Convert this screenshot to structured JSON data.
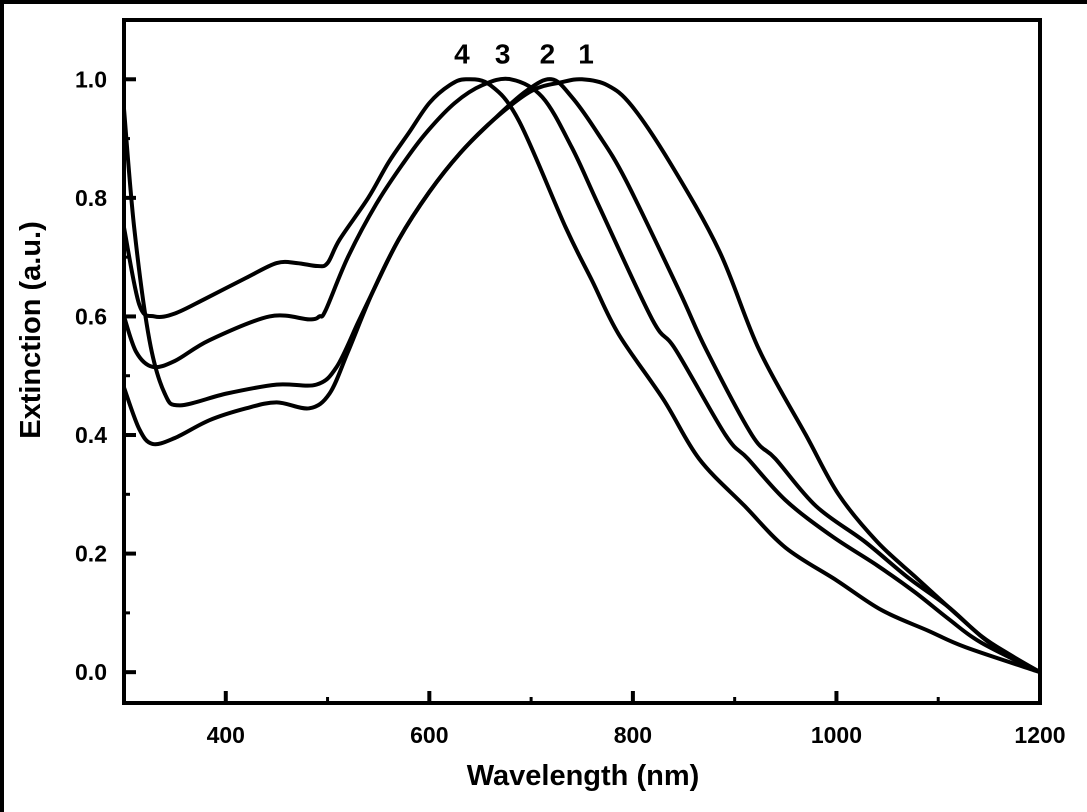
{
  "chart_data": {
    "type": "line",
    "title": "",
    "xlabel": "Wavelength (nm)",
    "ylabel": "Extinction (a.u.)",
    "xlim": [
      300,
      1200
    ],
    "ylim": [
      -0.052,
      1.1
    ],
    "xticks": [
      400,
      600,
      800,
      1000,
      1200
    ],
    "xtick_labels": [
      "400",
      "600",
      "800",
      "1000",
      "1200"
    ],
    "xminor": [
      300,
      500,
      700,
      900,
      1100
    ],
    "yticks": [
      0.0,
      0.2,
      0.4,
      0.6,
      0.8,
      1.0
    ],
    "ytick_labels": [
      "0.0",
      "0.2",
      "0.4",
      "0.6",
      "0.8",
      "1.0"
    ],
    "yminor": [
      0.1,
      0.3,
      0.5,
      0.7,
      0.9
    ],
    "grid": false,
    "line_color": "#000000",
    "series": [
      {
        "name": "1",
        "x": [
          300,
          315,
          328,
          350,
          384,
          420,
          450,
          482,
          502,
          520,
          544,
          570,
          600,
          630,
          662,
          700,
          730,
          750,
          775,
          799,
          838,
          885,
          924,
          970,
          1002,
          1040,
          1078,
          1110,
          1143,
          1170,
          1200
        ],
        "y": [
          0.48,
          0.41,
          0.385,
          0.395,
          0.425,
          0.445,
          0.455,
          0.445,
          0.47,
          0.54,
          0.64,
          0.73,
          0.81,
          0.875,
          0.93,
          0.98,
          0.995,
          1.0,
          0.99,
          0.955,
          0.855,
          0.71,
          0.544,
          0.4,
          0.3,
          0.22,
          0.16,
          0.11,
          0.06,
          0.03,
          0.0
        ]
      },
      {
        "name": "2",
        "x": [
          300,
          310,
          325,
          340,
          355,
          401,
          450,
          489,
          509,
          530,
          544,
          570,
          600,
          630,
          662,
          695,
          720,
          740,
          765,
          793,
          845,
          872,
          917,
          940,
          980,
          1028,
          1070,
          1110,
          1150,
          1200
        ],
        "y": [
          0.95,
          0.75,
          0.56,
          0.47,
          0.45,
          0.47,
          0.485,
          0.485,
          0.515,
          0.59,
          0.64,
          0.73,
          0.81,
          0.875,
          0.93,
          0.98,
          1.0,
          0.97,
          0.91,
          0.83,
          0.645,
          0.544,
          0.4,
          0.36,
          0.28,
          0.22,
          0.16,
          0.11,
          0.05,
          0.0
        ]
      },
      {
        "name": "3",
        "x": [
          300,
          312,
          328,
          350,
          384,
          443,
          482,
          492,
          498,
          520,
          548,
          575,
          597,
          625,
          652,
          680,
          711,
          740,
          767,
          819,
          842,
          891,
          913,
          950,
          995,
          1040,
          1077,
          1110,
          1142,
          1200
        ],
        "y": [
          0.6,
          0.54,
          0.515,
          0.525,
          0.56,
          0.6,
          0.595,
          0.6,
          0.61,
          0.7,
          0.79,
          0.86,
          0.91,
          0.96,
          0.99,
          1.0,
          0.97,
          0.885,
          0.785,
          0.595,
          0.544,
          0.4,
          0.36,
          0.29,
          0.23,
          0.18,
          0.135,
          0.09,
          0.05,
          0.0
        ]
      },
      {
        "name": "4",
        "x": [
          300,
          315,
          330,
          350,
          380,
          420,
          450,
          470,
          490,
          500,
          512,
          540,
          560,
          580,
          600,
          620,
          636,
          660,
          688,
          734,
          760,
          786,
          830,
          865,
          910,
          950,
          1000,
          1044,
          1090,
          1127,
          1200
        ],
        "y": [
          0.75,
          0.62,
          0.6,
          0.605,
          0.63,
          0.665,
          0.69,
          0.69,
          0.685,
          0.69,
          0.73,
          0.8,
          0.86,
          0.91,
          0.96,
          0.99,
          1.0,
          0.99,
          0.93,
          0.75,
          0.66,
          0.57,
          0.46,
          0.36,
          0.28,
          0.21,
          0.155,
          0.105,
          0.07,
          0.042,
          0.0
        ]
      }
    ],
    "annotations": [
      {
        "text": "4",
        "x": 632,
        "y": 1.04
      },
      {
        "text": "3",
        "x": 672,
        "y": 1.04
      },
      {
        "text": "2",
        "x": 716,
        "y": 1.04
      },
      {
        "text": "1",
        "x": 754,
        "y": 1.04
      }
    ]
  }
}
